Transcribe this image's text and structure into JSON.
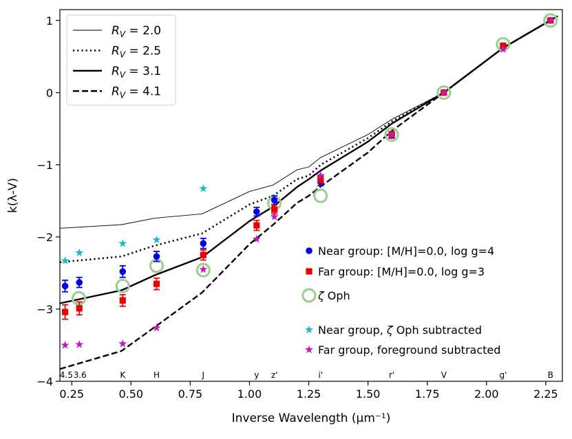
{
  "chart_data": {
    "type": "line",
    "xlabel": "Inverse Wavelength (μm⁻¹)",
    "ylabel": "k(λ-V)",
    "xlim": [
      0.2,
      2.32
    ],
    "ylim": [
      -4,
      1.15
    ],
    "xticks": [
      0.25,
      0.5,
      0.75,
      1.0,
      1.25,
      1.5,
      1.75,
      2.0,
      2.25
    ],
    "xtick_labels": [
      "0.25",
      "0.50",
      "0.75",
      "1.00",
      "1.25",
      "1.50",
      "1.75",
      "2.00",
      "2.25"
    ],
    "yticks": [
      -4,
      -3,
      -2,
      -1,
      0,
      1
    ],
    "ytick_labels": [
      "−4",
      "−3",
      "−2",
      "−1",
      "0",
      "1"
    ],
    "band_labels": [
      {
        "text": "4.5",
        "x": 0.227
      },
      {
        "text": "3.6",
        "x": 0.285
      },
      {
        "text": "K",
        "x": 0.465
      },
      {
        "text": "H",
        "x": 0.608
      },
      {
        "text": "J",
        "x": 0.805
      },
      {
        "text": "y",
        "x": 1.03
      },
      {
        "text": "z'",
        "x": 1.105
      },
      {
        "text": "i'",
        "x": 1.3
      },
      {
        "text": "r'",
        "x": 1.6
      },
      {
        "text": "V",
        "x": 1.82
      },
      {
        "text": "g'",
        "x": 2.07
      },
      {
        "text": "B",
        "x": 2.27
      }
    ],
    "lines": [
      {
        "name": "R_V = 2.0",
        "style": "thin",
        "points": [
          [
            0.2,
            -1.88
          ],
          [
            0.46,
            -1.83
          ],
          [
            0.6,
            -1.74
          ],
          [
            0.8,
            -1.68
          ],
          [
            1.0,
            -1.37
          ],
          [
            1.1,
            -1.28
          ],
          [
            1.2,
            -1.07
          ],
          [
            1.25,
            -1.03
          ],
          [
            1.3,
            -0.9
          ],
          [
            1.5,
            -0.58
          ],
          [
            1.6,
            -0.37
          ],
          [
            1.82,
            0.0
          ],
          [
            2.07,
            0.62
          ],
          [
            2.3,
            1.06
          ]
        ]
      },
      {
        "name": "R_V = 2.5",
        "style": "dotted",
        "points": [
          [
            0.2,
            -2.35
          ],
          [
            0.46,
            -2.27
          ],
          [
            0.6,
            -2.12
          ],
          [
            0.8,
            -1.95
          ],
          [
            1.0,
            -1.55
          ],
          [
            1.1,
            -1.43
          ],
          [
            1.2,
            -1.2
          ],
          [
            1.25,
            -1.15
          ],
          [
            1.3,
            -1.0
          ],
          [
            1.5,
            -0.63
          ],
          [
            1.6,
            -0.4
          ],
          [
            1.82,
            0.0
          ],
          [
            2.07,
            0.62
          ],
          [
            2.3,
            1.06
          ]
        ]
      },
      {
        "name": "R_V = 3.1",
        "style": "solid",
        "points": [
          [
            0.2,
            -2.92
          ],
          [
            0.46,
            -2.74
          ],
          [
            0.6,
            -2.53
          ],
          [
            0.8,
            -2.28
          ],
          [
            1.0,
            -1.78
          ],
          [
            1.1,
            -1.58
          ],
          [
            1.2,
            -1.31
          ],
          [
            1.25,
            -1.2
          ],
          [
            1.3,
            -1.08
          ],
          [
            1.5,
            -0.68
          ],
          [
            1.6,
            -0.43
          ],
          [
            1.82,
            0.0
          ],
          [
            2.07,
            0.62
          ],
          [
            2.3,
            1.06
          ]
        ]
      },
      {
        "name": "R_V = 4.1",
        "style": "dashed",
        "points": [
          [
            0.2,
            -3.83
          ],
          [
            0.46,
            -3.58
          ],
          [
            0.6,
            -3.25
          ],
          [
            0.8,
            -2.77
          ],
          [
            1.0,
            -2.1
          ],
          [
            1.1,
            -1.83
          ],
          [
            1.2,
            -1.53
          ],
          [
            1.25,
            -1.43
          ],
          [
            1.3,
            -1.3
          ],
          [
            1.5,
            -0.83
          ],
          [
            1.6,
            -0.53
          ],
          [
            1.82,
            0.0
          ],
          [
            2.07,
            0.62
          ],
          [
            2.3,
            1.06
          ]
        ]
      }
    ],
    "series": [
      {
        "name": "Near group: [M/H]=0.0, log g=4",
        "marker": "circle",
        "color": "#0000ee",
        "points": [
          [
            0.222,
            -2.68,
            0.08
          ],
          [
            0.282,
            -2.63,
            0.07
          ],
          [
            0.465,
            -2.48,
            0.08
          ],
          [
            0.608,
            -2.27,
            0.07
          ],
          [
            0.805,
            -2.09,
            0.07
          ],
          [
            1.03,
            -1.65,
            0.06
          ],
          [
            1.105,
            -1.49,
            0.06
          ],
          [
            1.3,
            -1.24,
            0.05
          ],
          [
            1.6,
            -0.59,
            0.04
          ],
          [
            1.82,
            0.0,
            0.02
          ],
          [
            2.07,
            0.65,
            0.03
          ],
          [
            2.27,
            1.0,
            0.02
          ]
        ]
      },
      {
        "name": "Far group: [M/H]=0.0, log g=3",
        "marker": "square",
        "color": "#ee0000",
        "points": [
          [
            0.222,
            -3.04,
            0.1
          ],
          [
            0.282,
            -2.99,
            0.09
          ],
          [
            0.465,
            -2.88,
            0.08
          ],
          [
            0.608,
            -2.65,
            0.08
          ],
          [
            0.805,
            -2.25,
            0.07
          ],
          [
            1.03,
            -1.84,
            0.07
          ],
          [
            1.105,
            -1.62,
            0.06
          ],
          [
            1.3,
            -1.2,
            0.05
          ],
          [
            1.6,
            -0.58,
            0.04
          ],
          [
            1.82,
            0.0,
            0.02
          ],
          [
            2.07,
            0.65,
            0.03
          ],
          [
            2.27,
            1.0,
            0.02
          ]
        ]
      },
      {
        "name": "ζ Oph",
        "marker": "open-circle",
        "color": "#9ccf92",
        "points": [
          [
            0.28,
            -2.85
          ],
          [
            0.465,
            -2.68
          ],
          [
            0.608,
            -2.4
          ],
          [
            0.805,
            -2.46
          ],
          [
            1.105,
            -1.53
          ],
          [
            1.3,
            -1.43
          ],
          [
            1.6,
            -0.58
          ],
          [
            1.82,
            0.0
          ],
          [
            2.07,
            0.67
          ],
          [
            2.27,
            1.0
          ]
        ]
      },
      {
        "name": "Near group, ζ Oph subtracted",
        "marker": "star",
        "color": "#1cbcbc",
        "points": [
          [
            0.222,
            -2.33
          ],
          [
            0.282,
            -2.22
          ],
          [
            0.465,
            -2.09
          ],
          [
            0.608,
            -2.04
          ],
          [
            0.805,
            -1.33
          ]
        ]
      },
      {
        "name": "Far group, foreground subtracted",
        "marker": "star",
        "color": "#bb1cbb",
        "points": [
          [
            0.222,
            -3.5
          ],
          [
            0.282,
            -3.49
          ],
          [
            0.465,
            -3.48
          ],
          [
            0.608,
            -3.26
          ],
          [
            0.805,
            -2.45
          ],
          [
            1.03,
            -2.03
          ],
          [
            1.105,
            -1.72
          ],
          [
            1.3,
            -1.15
          ],
          [
            1.6,
            -0.58
          ],
          [
            1.82,
            0.0
          ],
          [
            2.07,
            0.6
          ],
          [
            2.27,
            1.0
          ]
        ]
      }
    ],
    "legend_upper": {
      "placement": "top-left",
      "entries": [
        {
          "style": "thin",
          "prefix": "R",
          "sub": "V",
          "value": " = 2.0"
        },
        {
          "style": "dotted",
          "prefix": "R",
          "sub": "V",
          "value": " = 2.5"
        },
        {
          "style": "solid",
          "prefix": "R",
          "sub": "V",
          "value": " = 3.1"
        },
        {
          "style": "dashed",
          "prefix": "R",
          "sub": "V",
          "value": " = 4.1"
        }
      ]
    },
    "legend_lower": {
      "placement": "bottom-right",
      "entries": [
        {
          "marker": "circle",
          "label": "Near group: [M/H]=0.0, log g=4"
        },
        {
          "marker": "square",
          "label": "Far group: [M/H]=0.0, log g=3"
        },
        {
          "marker": "open-circle",
          "label": "ζ Oph"
        },
        {
          "marker": "star-cyan",
          "label": "Near group, ζ Oph subtracted"
        },
        {
          "marker": "star-magenta",
          "label": "Far group, foreground subtracted"
        }
      ]
    }
  }
}
